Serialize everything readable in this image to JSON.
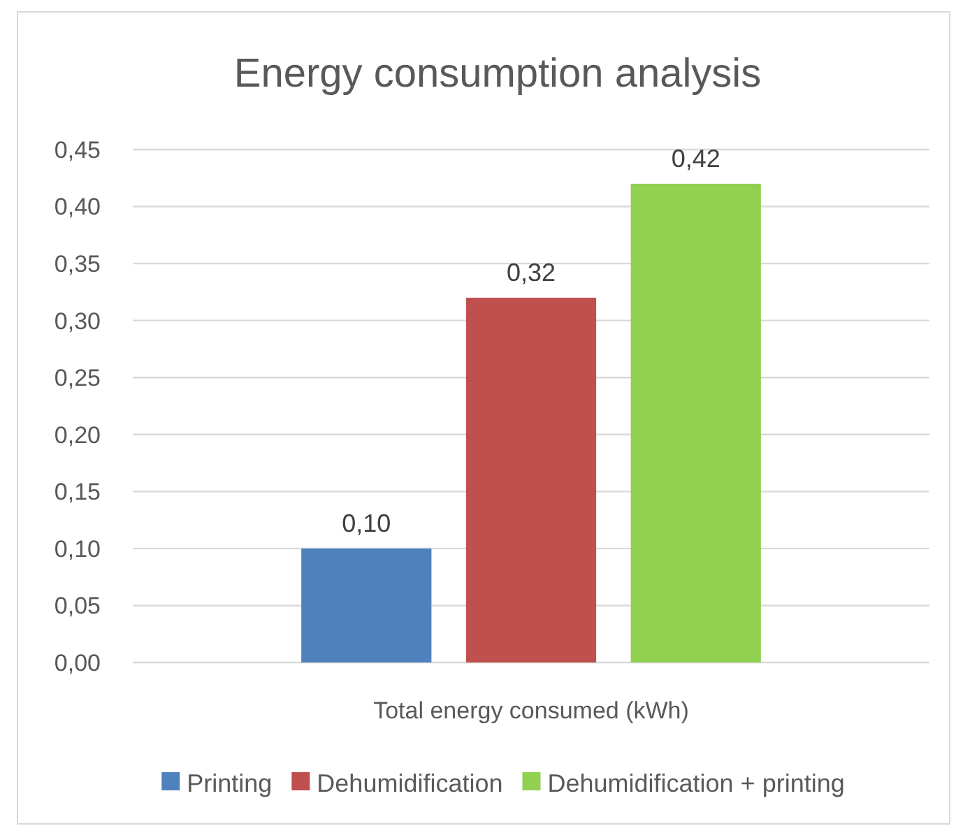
{
  "chart_data": {
    "type": "bar",
    "title": "Energy consumption analysis",
    "categories": [
      "Total energy consumed (kWh)"
    ],
    "series": [
      {
        "name": "Printing",
        "color": "#4f81bd",
        "values": [
          0.1
        ],
        "value_labels": [
          "0,10"
        ]
      },
      {
        "name": "Dehumidification",
        "color": "#c0504d",
        "values": [
          0.32
        ],
        "value_labels": [
          "0,32"
        ]
      },
      {
        "name": "Dehumidification + printing",
        "color": "#92d050",
        "values": [
          0.42
        ],
        "value_labels": [
          "0,42"
        ]
      }
    ],
    "ylim": [
      0,
      0.45
    ],
    "yticks": [
      {
        "value": 0,
        "label": "0,00"
      },
      {
        "value": 0.05,
        "label": "0,05"
      },
      {
        "value": 0.1,
        "label": "0,10"
      },
      {
        "value": 0.15,
        "label": "0,15"
      },
      {
        "value": 0.2,
        "label": "0,20"
      },
      {
        "value": 0.25,
        "label": "0,25"
      },
      {
        "value": 0.3,
        "label": "0,30"
      },
      {
        "value": 0.35,
        "label": "0,35"
      },
      {
        "value": 0.4,
        "label": "0,40"
      },
      {
        "value": 0.45,
        "label": "0,45"
      }
    ],
    "grid": "y",
    "legend": "bottom"
  }
}
